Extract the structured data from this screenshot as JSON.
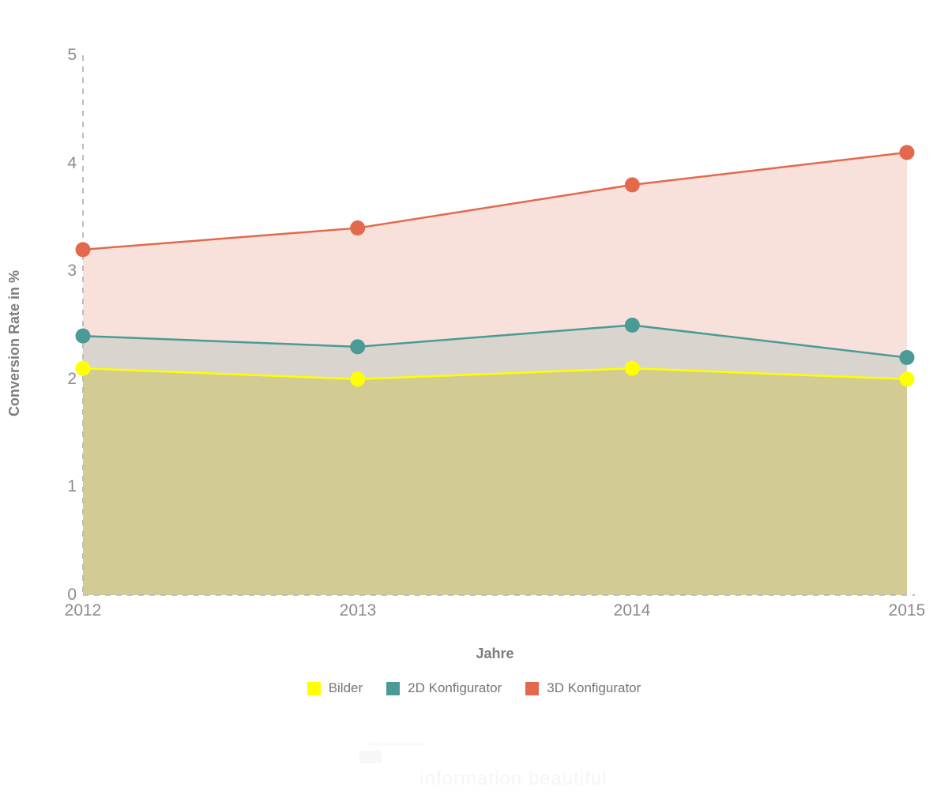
{
  "chart_data": {
    "type": "area",
    "title": "",
    "xlabel": "Jahre",
    "ylabel": "Conversion Rate in %",
    "categories": [
      "2012",
      "2013",
      "2014",
      "2015"
    ],
    "y_ticks": [
      5,
      4,
      3,
      2,
      1,
      0
    ],
    "ylim": [
      0,
      5
    ],
    "grid": "off",
    "axis_style": "dashed y-axis line and dashed zero baseline only",
    "legend_position": "bottom-center",
    "series": [
      {
        "name": "Bilder",
        "color": "#ffff00",
        "fill": "rgba(206,194,100,0.55)",
        "values": [
          2.1,
          2.0,
          2.1,
          2.0
        ]
      },
      {
        "name": "2D Konfigurator",
        "color": "#4a9b95",
        "fill": "rgba(74,155,149,0.18)",
        "values": [
          2.4,
          2.3,
          2.5,
          2.2
        ]
      },
      {
        "name": "3D Konfigurator",
        "color": "#e2694c",
        "fill": "rgba(226,105,76,0.2)",
        "values": [
          3.2,
          3.4,
          3.8,
          4.1
        ]
      }
    ]
  },
  "watermark": {
    "tagline": "information beautiful"
  },
  "colors": {
    "axis_dash": "#bdbdbd",
    "tick_text": "#8c8c8c",
    "label_text": "#7d7d7d",
    "legend_text": "#757575",
    "background": "#ffffff"
  }
}
